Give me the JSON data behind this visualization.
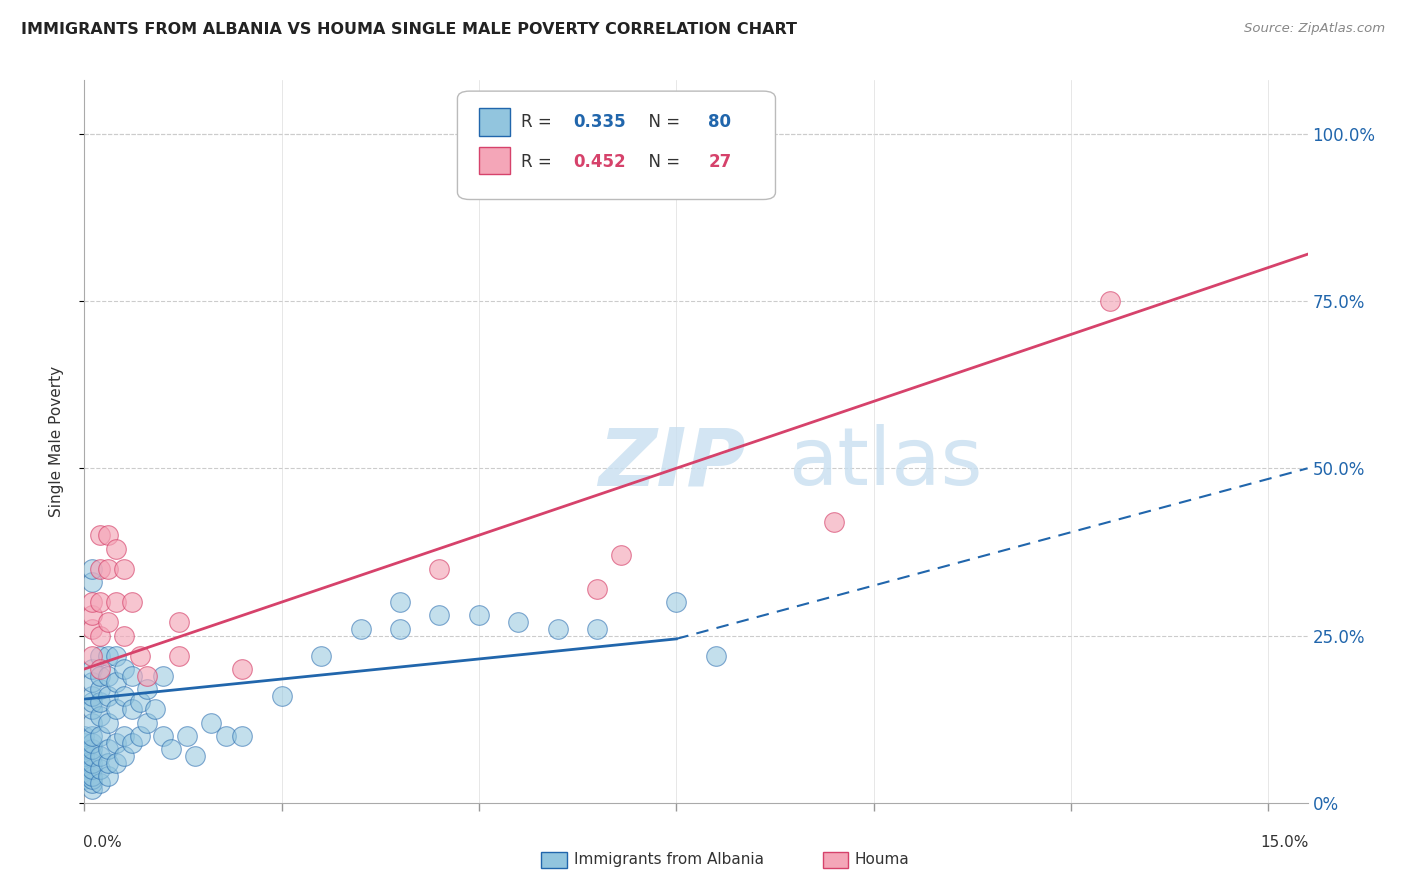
{
  "title": "IMMIGRANTS FROM ALBANIA VS HOUMA SINGLE MALE POVERTY CORRELATION CHART",
  "source": "Source: ZipAtlas.com",
  "ylabel": "Single Male Poverty",
  "xlim": [
    0.0,
    0.155
  ],
  "ylim": [
    0.0,
    1.08
  ],
  "ytick_values": [
    0.0,
    0.25,
    0.5,
    0.75,
    1.0
  ],
  "ytick_labels": [
    "0%",
    "25.0%",
    "50.0%",
    "75.0%",
    "100.0%"
  ],
  "color_blue": "#92c5de",
  "color_pink": "#f4a6b8",
  "color_trendline_blue": "#2166ac",
  "color_trendline_pink": "#d6426b",
  "alb_trend_x0": 0.0,
  "alb_trend_y0": 0.155,
  "alb_trend_x1": 0.075,
  "alb_trend_y1": 0.245,
  "alb_trend_dash_x0": 0.075,
  "alb_trend_dash_y0": 0.245,
  "alb_trend_dash_x1": 0.155,
  "alb_trend_dash_y1": 0.5,
  "houma_trend_x0": 0.0,
  "houma_trend_y0": 0.2,
  "houma_trend_x1": 0.155,
  "houma_trend_y1": 0.82,
  "albania_x": [
    0.0,
    0.0,
    0.0,
    0.0,
    0.0,
    0.0,
    0.0,
    0.0,
    0.0,
    0.001,
    0.001,
    0.001,
    0.001,
    0.001,
    0.001,
    0.001,
    0.001,
    0.001,
    0.001,
    0.001,
    0.001,
    0.001,
    0.001,
    0.001,
    0.001,
    0.001,
    0.001,
    0.002,
    0.002,
    0.002,
    0.002,
    0.002,
    0.002,
    0.002,
    0.002,
    0.002,
    0.003,
    0.003,
    0.003,
    0.003,
    0.003,
    0.003,
    0.003,
    0.004,
    0.004,
    0.004,
    0.004,
    0.004,
    0.005,
    0.005,
    0.005,
    0.005,
    0.006,
    0.006,
    0.006,
    0.007,
    0.007,
    0.008,
    0.008,
    0.009,
    0.01,
    0.01,
    0.011,
    0.013,
    0.014,
    0.016,
    0.018,
    0.02,
    0.025,
    0.03,
    0.035,
    0.04,
    0.04,
    0.045,
    0.05,
    0.055,
    0.06,
    0.065,
    0.075,
    0.08
  ],
  "albania_y": [
    0.035,
    0.04,
    0.05,
    0.06,
    0.07,
    0.07,
    0.08,
    0.09,
    0.1,
    0.02,
    0.03,
    0.035,
    0.04,
    0.05,
    0.06,
    0.07,
    0.08,
    0.09,
    0.1,
    0.12,
    0.14,
    0.15,
    0.16,
    0.18,
    0.2,
    0.33,
    0.35,
    0.03,
    0.05,
    0.07,
    0.1,
    0.13,
    0.15,
    0.17,
    0.19,
    0.22,
    0.04,
    0.06,
    0.08,
    0.12,
    0.16,
    0.19,
    0.22,
    0.06,
    0.09,
    0.14,
    0.18,
    0.22,
    0.07,
    0.1,
    0.16,
    0.2,
    0.09,
    0.14,
    0.19,
    0.1,
    0.15,
    0.12,
    0.17,
    0.14,
    0.1,
    0.19,
    0.08,
    0.1,
    0.07,
    0.12,
    0.1,
    0.1,
    0.16,
    0.22,
    0.26,
    0.26,
    0.3,
    0.28,
    0.28,
    0.27,
    0.26,
    0.26,
    0.3,
    0.22
  ],
  "houma_x": [
    0.001,
    0.001,
    0.001,
    0.001,
    0.002,
    0.002,
    0.002,
    0.002,
    0.002,
    0.003,
    0.003,
    0.003,
    0.004,
    0.004,
    0.005,
    0.005,
    0.006,
    0.007,
    0.008,
    0.012,
    0.012,
    0.02,
    0.045,
    0.065,
    0.068,
    0.095,
    0.13
  ],
  "houma_y": [
    0.22,
    0.26,
    0.28,
    0.3,
    0.2,
    0.25,
    0.3,
    0.35,
    0.4,
    0.27,
    0.35,
    0.4,
    0.3,
    0.38,
    0.25,
    0.35,
    0.3,
    0.22,
    0.19,
    0.22,
    0.27,
    0.2,
    0.35,
    0.32,
    0.37,
    0.42,
    0.75
  ],
  "watermark_zip": "ZIP",
  "watermark_atlas": "atlas",
  "legend_r1_label": "R = ",
  "legend_r1_val": "0.335",
  "legend_n1_label": "  N = ",
  "legend_n1_val": "80",
  "legend_r2_label": "R = ",
  "legend_r2_val": "0.452",
  "legend_n2_label": "  N = ",
  "legend_n2_val": "27",
  "bottom_legend_albania": "Immigrants from Albania",
  "bottom_legend_houma": "Houma"
}
